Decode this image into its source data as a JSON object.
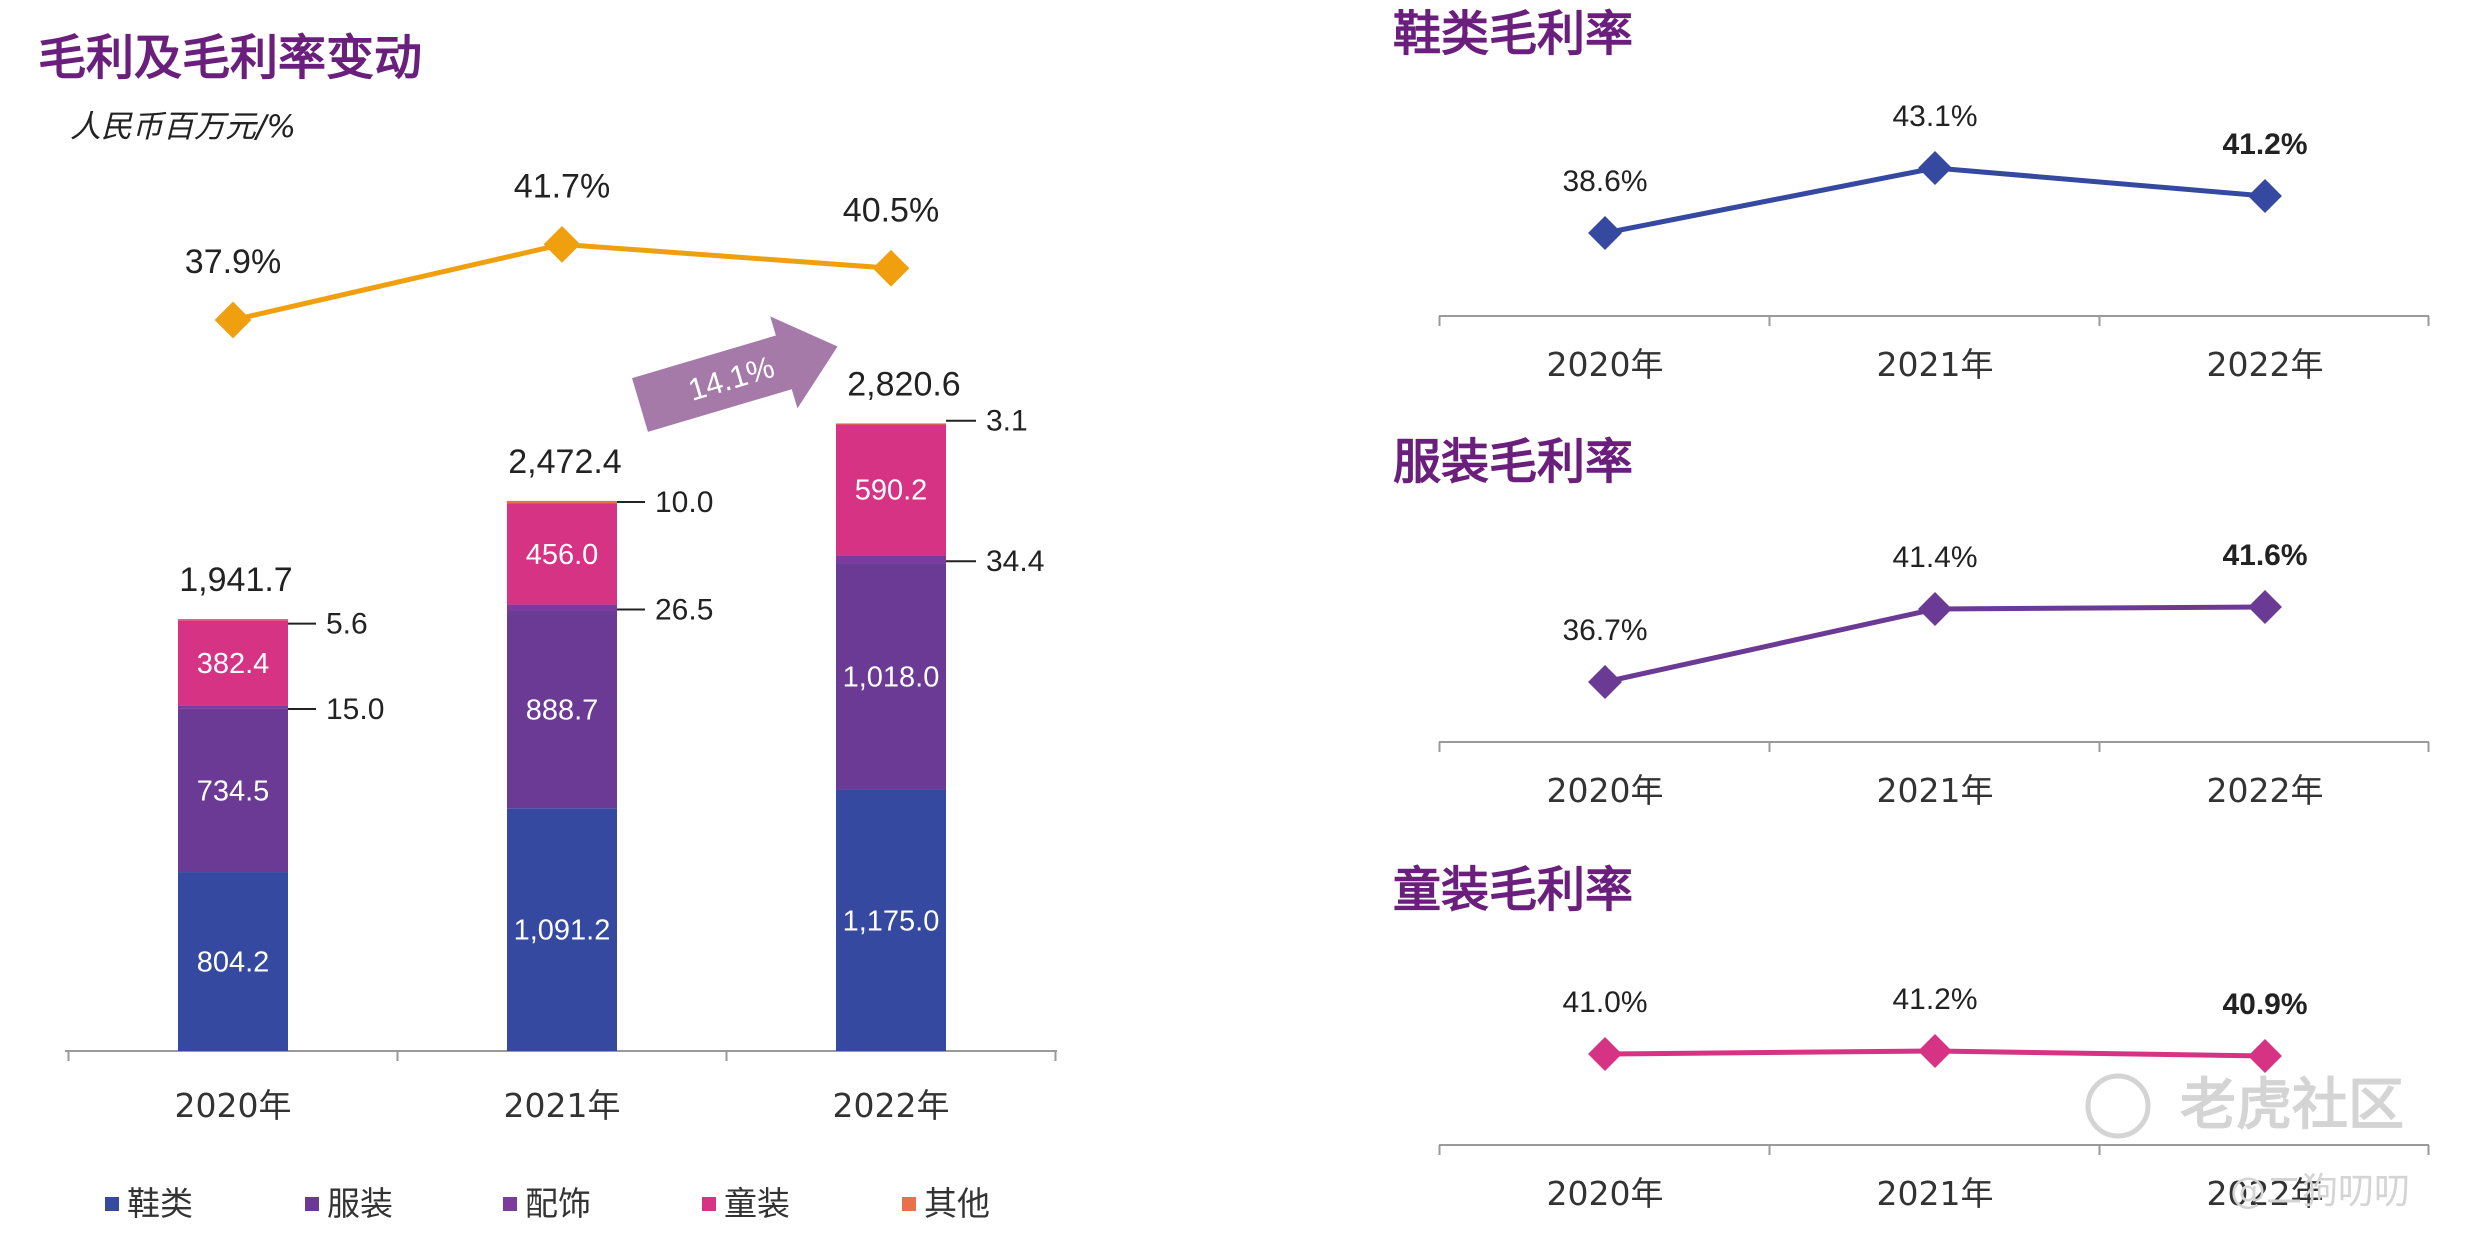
{
  "colors": {
    "title": "#6b1f7c",
    "footwear": "#34499f",
    "apparel": "#6a3a95",
    "accessories": "#7b3a9e",
    "kids": "#d63384",
    "other": "#e8704a",
    "margin_line": "#f0a00f",
    "growth_arrow": "#a579a8",
    "shoes_line": "#34499f",
    "apparel_line": "#6a3a95",
    "kids_line": "#d63384"
  },
  "chart_data": [
    {
      "type": "bar",
      "stacked": true,
      "title": "毛利及毛利率变动",
      "subtitle": "人民币百万元/%",
      "categories": [
        "2020年",
        "2021年",
        "2022年"
      ],
      "series": [
        {
          "name": "鞋类",
          "values": [
            804.2,
            1091.2,
            1175.0
          ],
          "labels": [
            "804.2",
            "1,091.2",
            "1,175.0"
          ]
        },
        {
          "name": "服装",
          "values": [
            734.5,
            888.7,
            1018.0
          ],
          "labels": [
            "734.5",
            "888.7",
            "1,018.0"
          ]
        },
        {
          "name": "配饰",
          "values": [
            15.0,
            26.5,
            34.4
          ],
          "labels": [
            "15.0",
            "26.5",
            "34.4"
          ]
        },
        {
          "name": "童装",
          "values": [
            382.4,
            456.0,
            590.2
          ],
          "labels": [
            "382.4",
            "456.0",
            "590.2"
          ]
        },
        {
          "name": "其他",
          "values": [
            5.6,
            10.0,
            3.1
          ],
          "labels": [
            "5.6",
            "10.0",
            "3.1"
          ]
        }
      ],
      "totals": [
        1941.7,
        2472.4,
        2820.6
      ],
      "total_labels": [
        "1,941.7",
        "2,472.4",
        "2,820.6"
      ],
      "line": {
        "name": "毛利率",
        "values": [
          37.9,
          41.7,
          40.5
        ],
        "labels": [
          "37.9%",
          "41.7%",
          "40.5%"
        ]
      },
      "growth_label": "14.1%",
      "legend": [
        "鞋类",
        "服装",
        "配饰",
        "童装",
        "其他"
      ],
      "legend_position": "bottom"
    },
    {
      "type": "line",
      "title": "鞋类毛利率",
      "categories": [
        "2020年",
        "2021年",
        "2022年"
      ],
      "values": [
        38.6,
        43.1,
        41.2
      ],
      "labels": [
        "38.6%",
        "43.1%",
        "41.2%"
      ]
    },
    {
      "type": "line",
      "title": "服装毛利率",
      "categories": [
        "2020年",
        "2021年",
        "2022年"
      ],
      "values": [
        36.7,
        41.4,
        41.6
      ],
      "labels": [
        "36.7%",
        "41.4%",
        "41.6%"
      ]
    },
    {
      "type": "line",
      "title": "童装毛利率",
      "categories": [
        "2020年",
        "2021年",
        "2022年"
      ],
      "values": [
        41.0,
        41.2,
        40.9
      ],
      "labels": [
        "41.0%",
        "41.2%",
        "40.9%"
      ]
    }
  ],
  "watermark": {
    "brand": "老虎社区",
    "user": "@二狗叨叨"
  }
}
